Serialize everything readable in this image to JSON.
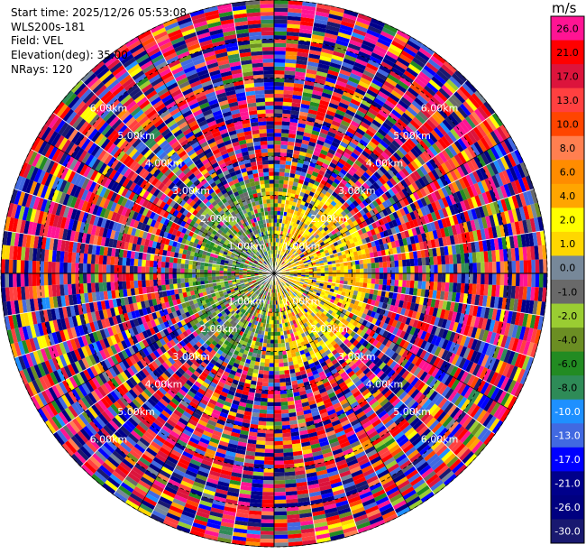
{
  "info": {
    "start_time": "Start time: 2025/12/26 05:53:08",
    "site": "WLS200s-181",
    "field": "Field: VEL",
    "elevation": "Elevation(deg): 35.00",
    "nrays": "NRays: 120"
  },
  "chart_data": {
    "type": "heatmap",
    "projection": "polar PPI",
    "field": "VEL",
    "unit": "m/s",
    "nrays": 120,
    "elevation_deg": 35.0,
    "range_km": [
      0,
      7.0
    ],
    "range_ring_km": [
      1,
      2,
      3,
      4,
      5,
      6,
      7
    ],
    "range_ring_labels": [
      "1.00km",
      "2.00km",
      "3.00km",
      "4.00km",
      "5.00km",
      "6.00km"
    ],
    "colorbar_ticks": [
      "26.0",
      "21.0",
      "17.0",
      "13.0",
      "10.0",
      "8.0",
      "6.0",
      "4.0",
      "2.0",
      "1.0",
      "0.0",
      "-1.0",
      "-2.0",
      "-4.0",
      "-6.0",
      "-8.0",
      "-10.0",
      "-13.0",
      "-17.0",
      "-21.0",
      "-26.0",
      "-30.0"
    ],
    "colorbar_colors": [
      "#ff1493",
      "#ff0000",
      "#dc143c",
      "#ff4040",
      "#ff4500",
      "#ff7f50",
      "#ff8c00",
      "#ffa500",
      "#ffff00",
      "#ffd700",
      "#778899",
      "#696969",
      "#9acd32",
      "#6b8e23",
      "#228b22",
      "#2e8b57",
      "#1e90ff",
      "#4169e1",
      "#0000ff",
      "#00008b",
      "#000080",
      "#191970"
    ],
    "pattern": "near-range (< ~2.5 km) dominated by yellow/gold (+2 to +4 m/s) to the east and green/olive (-1 to -6 m/s) to the west; beyond ~2.5 km noisy mixture of all colour classes",
    "grid": true,
    "colorbar_position": "right"
  }
}
